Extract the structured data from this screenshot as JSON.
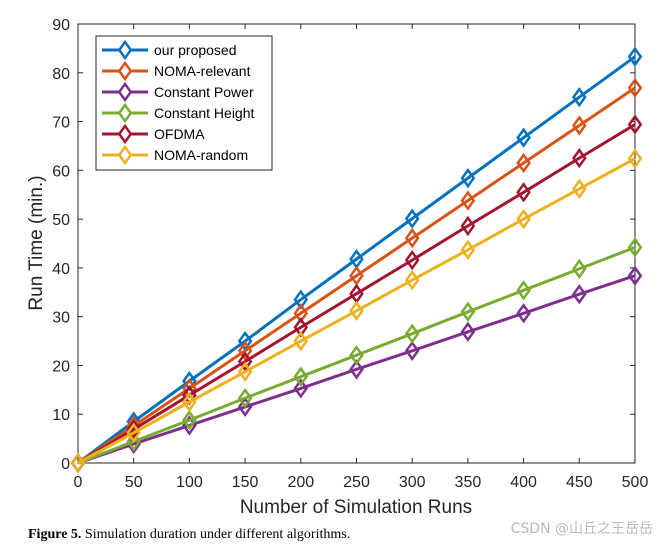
{
  "chart_data": {
    "type": "line",
    "xlabel": "Number of Simulation Runs",
    "ylabel": "Run Time (min.)",
    "xlim": [
      0,
      500
    ],
    "ylim": [
      0,
      90
    ],
    "xticks": [
      0,
      50,
      100,
      150,
      200,
      250,
      300,
      350,
      400,
      450,
      500
    ],
    "yticks": [
      0,
      10,
      20,
      30,
      40,
      50,
      60,
      70,
      80,
      90
    ],
    "grid": false,
    "legend_position": "top-left",
    "marker": "diamond",
    "x": [
      0,
      50,
      100,
      150,
      200,
      250,
      300,
      350,
      400,
      450,
      500
    ],
    "series": [
      {
        "name": "our proposed",
        "color": "#0072BD",
        "values": [
          0,
          8.5,
          16.8,
          25.0,
          33.5,
          41.8,
          50.1,
          58.4,
          66.7,
          75.0,
          83.3
        ]
      },
      {
        "name": "NOMA-relevant",
        "color": "#D95319",
        "values": [
          0,
          7.6,
          15.3,
          23.0,
          30.7,
          38.4,
          46.1,
          53.8,
          61.5,
          69.2,
          76.9
        ]
      },
      {
        "name": "Constant Power",
        "color": "#7E2F8E",
        "values": [
          0,
          3.9,
          7.7,
          11.5,
          15.3,
          19.2,
          23.0,
          26.9,
          30.7,
          34.6,
          38.4
        ]
      },
      {
        "name": "Constant Height",
        "color": "#77AC30",
        "values": [
          0,
          4.4,
          8.8,
          13.3,
          17.7,
          22.1,
          26.5,
          31.0,
          35.4,
          39.8,
          44.2
        ]
      },
      {
        "name": "OFDMA",
        "color": "#A2142F",
        "values": [
          0,
          6.9,
          13.9,
          20.8,
          27.8,
          34.7,
          41.6,
          48.6,
          55.5,
          62.5,
          69.4
        ]
      },
      {
        "name": "NOMA-random",
        "color": "#EDB120",
        "values": [
          0,
          6.2,
          12.5,
          18.7,
          25.0,
          31.2,
          37.5,
          43.7,
          50.0,
          56.2,
          62.4
        ]
      }
    ]
  },
  "caption": {
    "label": "Figure 5.",
    "text": " Simulation duration under different algorithms."
  },
  "watermark": "CSDN @山丘之王岳岳"
}
